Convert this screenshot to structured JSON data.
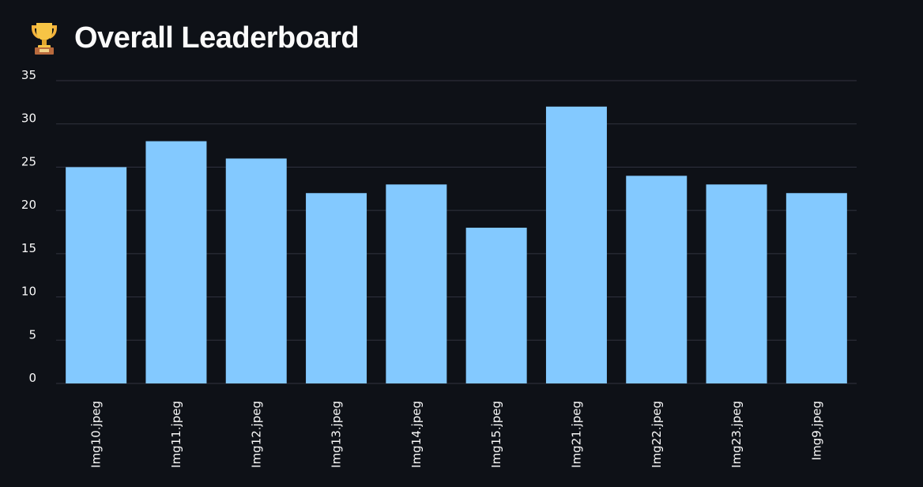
{
  "header": {
    "title": "Overall Leaderboard",
    "icon": "trophy-icon"
  },
  "colors": {
    "background": "#0e1117",
    "bar": "#83c9ff",
    "grid": "#31333f",
    "text": "#fafafa"
  },
  "chart_data": {
    "type": "bar",
    "categories": [
      "Img10.jpeg",
      "Img11.jpeg",
      "Img12.jpeg",
      "Img13.jpeg",
      "Img14.jpeg",
      "Img15.jpeg",
      "Img21.jpeg",
      "Img22.jpeg",
      "Img23.jpeg",
      "Img9.jpeg"
    ],
    "values": [
      25,
      28,
      26,
      22,
      23,
      18,
      32,
      24,
      23,
      22
    ],
    "ylim": [
      0,
      35
    ],
    "yticks": [
      0,
      5,
      10,
      15,
      20,
      25,
      30,
      35
    ],
    "grid": true,
    "xlabel_rotation": "vertical"
  }
}
